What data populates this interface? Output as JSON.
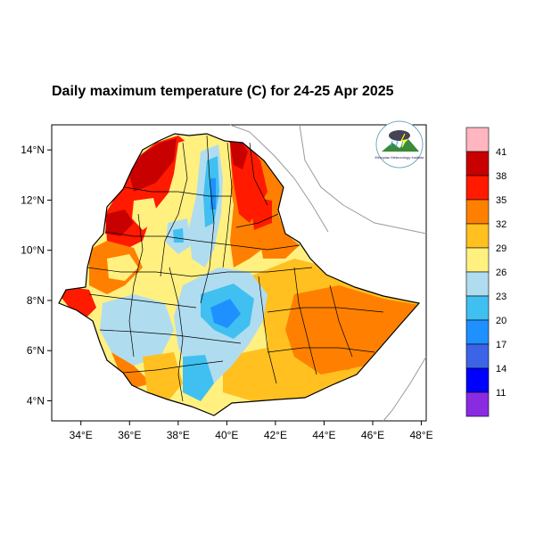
{
  "title": "Daily maximum temperature (C) for 24-25 Apr 2025",
  "map": {
    "lon_ticks": [
      "34°E",
      "36°E",
      "38°E",
      "40°E",
      "42°E",
      "44°E",
      "46°E",
      "48°E"
    ],
    "lat_ticks": [
      "14°N",
      "12°N",
      "10°N",
      "8°N",
      "6°N",
      "4°N"
    ],
    "lon_values": [
      34,
      36,
      38,
      40,
      42,
      44,
      46,
      48
    ],
    "lat_values": [
      14,
      12,
      10,
      8,
      6,
      4
    ],
    "lon_range": [
      32.8,
      48.2
    ],
    "lat_range": [
      3.2,
      15.0
    ]
  },
  "colorbar": {
    "labels": [
      "41",
      "38",
      "35",
      "32",
      "29",
      "26",
      "23",
      "20",
      "17",
      "14",
      "11"
    ],
    "colors": [
      "#ffb6c1",
      "#c80000",
      "#ff1a00",
      "#ff8000",
      "#ffc020",
      "#fff080",
      "#b0dcf0",
      "#40c0f0",
      "#1e90ff",
      "#3c64e6",
      "#0000ff",
      "#8a2be2"
    ]
  },
  "logo": {
    "text": "Ethiopian Meteorology Institute"
  },
  "colors": {
    "hot": "#ff1a00",
    "very_hot": "#c80000",
    "warm": "#ff8000",
    "mild": "#ffc020",
    "pale": "#fff080",
    "cool": "#b0dcf0",
    "cold": "#40c0f0",
    "colder": "#1e90ff"
  }
}
